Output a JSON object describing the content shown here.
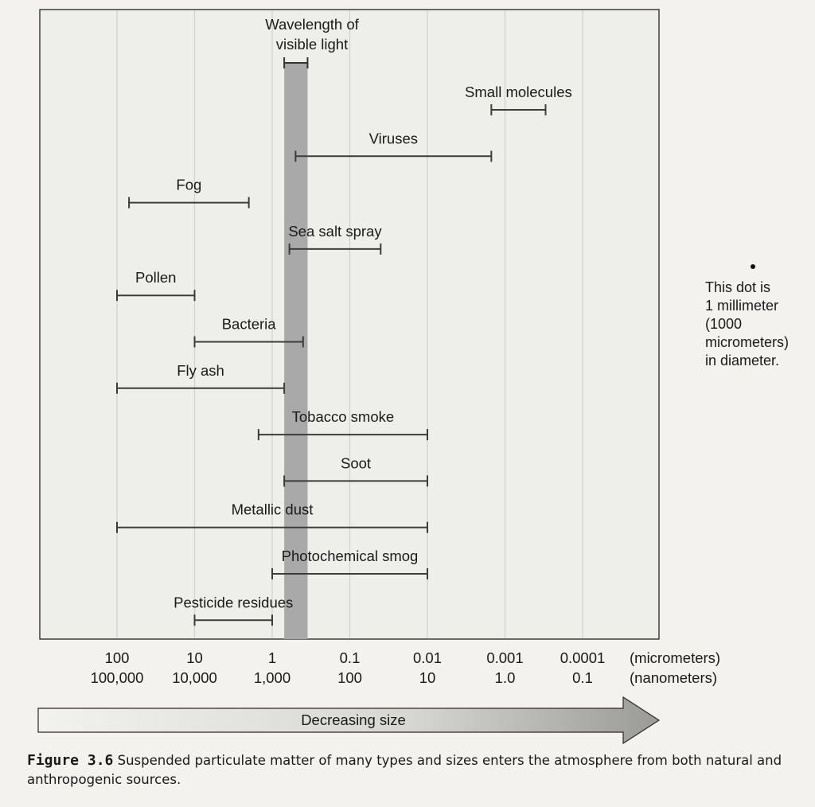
{
  "chart_data": {
    "type": "range",
    "x_scale": "log",
    "x_direction": "decreasing size",
    "xlim_micrometers": [
      200,
      5e-05
    ],
    "ticks": [
      {
        "micrometers": "100",
        "nanometers": "100,000",
        "value": 100
      },
      {
        "micrometers": "10",
        "nanometers": "10,000",
        "value": 10
      },
      {
        "micrometers": "1",
        "nanometers": "1,000",
        "value": 1
      },
      {
        "micrometers": "0.1",
        "nanometers": "100",
        "value": 0.1
      },
      {
        "micrometers": "0.01",
        "nanometers": "10",
        "value": 0.01
      },
      {
        "micrometers": "0.001",
        "nanometers": "1.0",
        "value": 0.001
      },
      {
        "micrometers": "0.0001",
        "nanometers": "0.1",
        "value": 0.0001
      }
    ],
    "unit_labels": {
      "micrometers": "(micrometers)",
      "nanometers": "(nanometers)"
    },
    "visible_light": {
      "label_line1": "Wavelength of",
      "label_line2": "visible light",
      "range_micrometers": [
        0.7,
        0.35
      ]
    },
    "ranges": [
      {
        "label": "Small molecules",
        "from": 0.0015,
        "to": 0.0003
      },
      {
        "label": "Viruses",
        "from": 0.5,
        "to": 0.0015
      },
      {
        "label": "Fog",
        "from": 70,
        "to": 2
      },
      {
        "label": "Sea salt spray",
        "from": 0.6,
        "to": 0.04
      },
      {
        "label": "Pollen",
        "from": 100,
        "to": 10
      },
      {
        "label": "Bacteria",
        "from": 10,
        "to": 0.4
      },
      {
        "label": "Fly ash",
        "from": 100,
        "to": 0.7
      },
      {
        "label": "Tobacco smoke",
        "from": 1.5,
        "to": 0.01
      },
      {
        "label": "Soot",
        "from": 0.7,
        "to": 0.01
      },
      {
        "label": "Metallic dust",
        "from": 100,
        "to": 0.01
      },
      {
        "label": "Photochemical smog",
        "from": 1,
        "to": 0.01
      },
      {
        "label": "Pesticide residues",
        "from": 10,
        "to": 1
      }
    ],
    "arrow_label": "Decreasing size",
    "grid": true,
    "colors": {
      "plot_background": "#eeeeea",
      "visible_band": "#a9a9a9",
      "range_bar": "#3c3c3c",
      "gridline": "#d2d2cc",
      "arrow_fill": "#e6e6e2"
    }
  },
  "note": {
    "line1": "This dot is",
    "line2": "1 millimeter",
    "line3": "(1000",
    "line4": "micrometers)",
    "line5": "in diameter."
  },
  "caption": {
    "label": "Figure 3.6",
    "text": "Suspended particulate matter of many types and sizes enters the atmosphere from both natural and anthropogenic sources."
  }
}
